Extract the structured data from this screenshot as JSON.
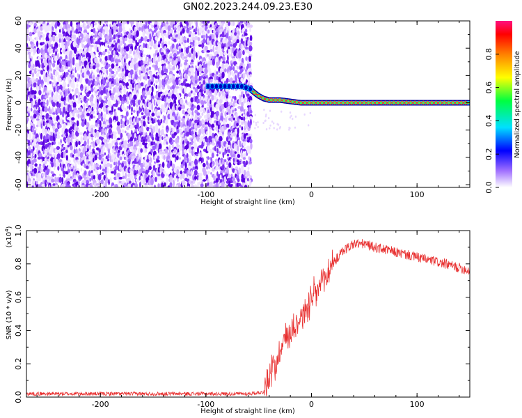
{
  "title": "GN02.2023.244.09.23.E30",
  "chart_data": [
    {
      "type": "heatmap",
      "name_role": "spectrogram",
      "xlabel": "Height of straight line (km)",
      "ylabel": "Frequency (Hz)",
      "xlim": [
        -270,
        150
      ],
      "ylim": [
        -62,
        60
      ],
      "x_ticks": [
        -200,
        -100,
        0,
        100
      ],
      "y_ticks": [
        -60,
        -40,
        -20,
        0,
        20,
        40,
        60
      ],
      "noise_region_x": [
        -270,
        -58
      ],
      "ridge": {
        "x": [
          -100,
          -80,
          -65,
          -58,
          -55,
          -50,
          -45,
          -40,
          -30,
          -20,
          -10,
          0,
          20,
          50,
          100,
          150
        ],
        "y": [
          12,
          12,
          12,
          10,
          8,
          5,
          3,
          2,
          2,
          1,
          0,
          0,
          0,
          0,
          0,
          0
        ]
      },
      "colorbar": {
        "label": "Normalized spectral amplitude",
        "ticks": [
          0.0,
          0.2,
          0.4,
          0.6,
          0.8
        ],
        "range": [
          0,
          1
        ]
      }
    },
    {
      "type": "line",
      "name_role": "snr",
      "xlabel": "Height of straight line (km)",
      "ylabel": "SNR (10 * v/v)",
      "y_scale_label": "(x10",
      "y_scale_exp": "4",
      "y_scale_close": ")",
      "xlim": [
        -270,
        150
      ],
      "ylim": [
        0,
        1.0
      ],
      "x_ticks": [
        -200,
        -100,
        0,
        100
      ],
      "y_ticks": [
        0.0,
        0.2,
        0.4,
        0.6,
        0.8,
        1.0
      ],
      "color": "#e83030",
      "envelope": {
        "x": [
          -270,
          -60,
          -45,
          -42,
          -38,
          -30,
          -25,
          -20,
          -10,
          0,
          10,
          20,
          30,
          40,
          50,
          60,
          80,
          100,
          120,
          150
        ],
        "y": [
          0.02,
          0.02,
          0.03,
          0.08,
          0.15,
          0.28,
          0.35,
          0.4,
          0.48,
          0.58,
          0.68,
          0.8,
          0.88,
          0.92,
          0.92,
          0.9,
          0.87,
          0.84,
          0.81,
          0.76
        ]
      }
    }
  ]
}
